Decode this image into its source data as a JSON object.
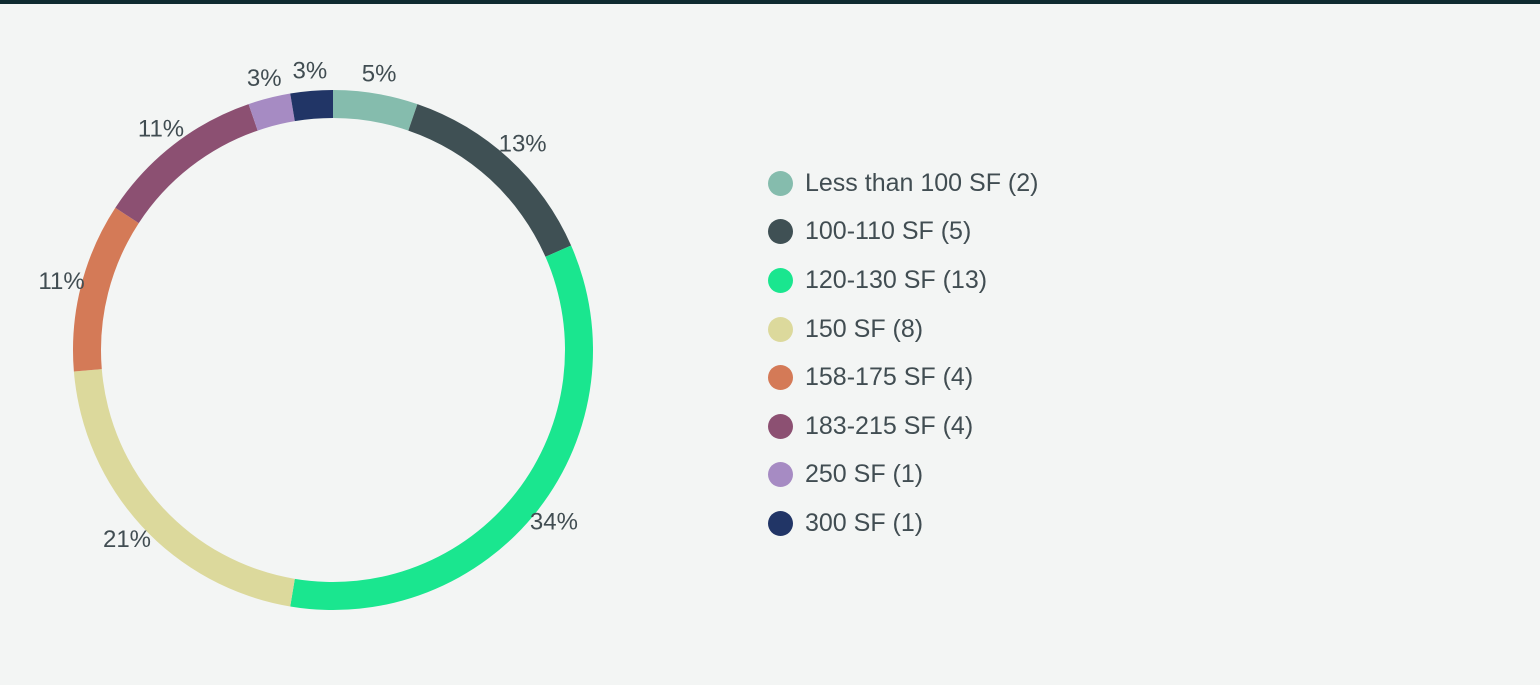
{
  "chart_data": {
    "type": "pie",
    "variant": "donut",
    "title": "",
    "categories": [
      "Less than 100 SF (2)",
      "100-110 SF (5)",
      "120-130 SF (13)",
      "150 SF (8)",
      "158-175 SF (4)",
      "183-215 SF (4)",
      "250 SF (1)",
      "300 SF (1)"
    ],
    "values": [
      2,
      5,
      13,
      8,
      4,
      4,
      1,
      1
    ],
    "percent_labels": [
      "5%",
      "13%",
      "34%",
      "21%",
      "11%",
      "11%",
      "3%",
      "3%"
    ],
    "colors": [
      "#85bcad",
      "#3f5054",
      "#1ae68f",
      "#dcd99c",
      "#d47a57",
      "#8c5072",
      "#a68bc3",
      "#213566"
    ],
    "legend_position": "right"
  }
}
